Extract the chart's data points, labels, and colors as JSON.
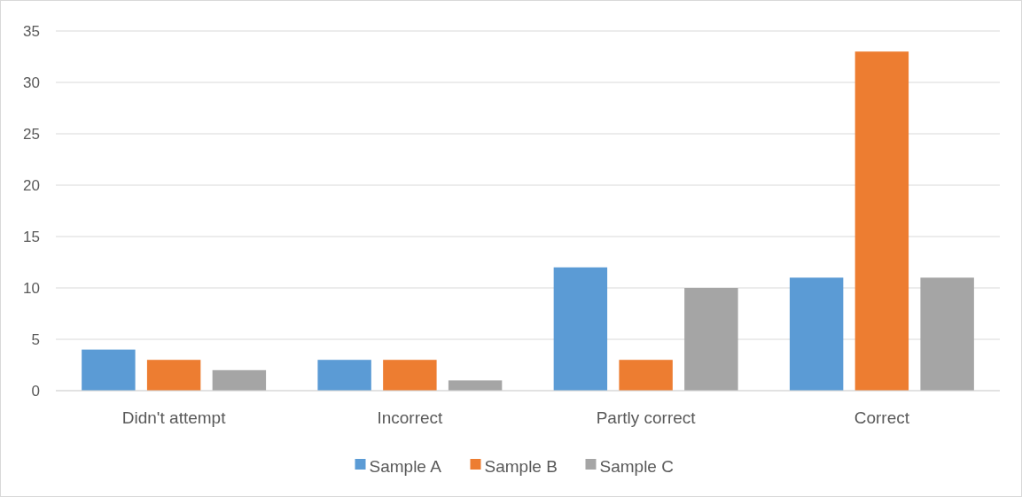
{
  "chart_data": {
    "type": "bar",
    "categories": [
      "Didn't attempt",
      "Incorrect",
      "Partly correct",
      "Correct"
    ],
    "series": [
      {
        "name": "Sample A",
        "color": "#5b9bd5",
        "values": [
          4,
          3,
          12,
          11
        ]
      },
      {
        "name": "Sample B",
        "color": "#ed7d31",
        "values": [
          3,
          3,
          3,
          33
        ]
      },
      {
        "name": "Sample C",
        "color": "#a5a5a5",
        "values": [
          2,
          1,
          10,
          11
        ]
      }
    ],
    "ylim": [
      0,
      35
    ],
    "yticks": [
      0,
      5,
      10,
      15,
      20,
      25,
      30,
      35
    ],
    "grid": "y",
    "legend": "bottom"
  }
}
